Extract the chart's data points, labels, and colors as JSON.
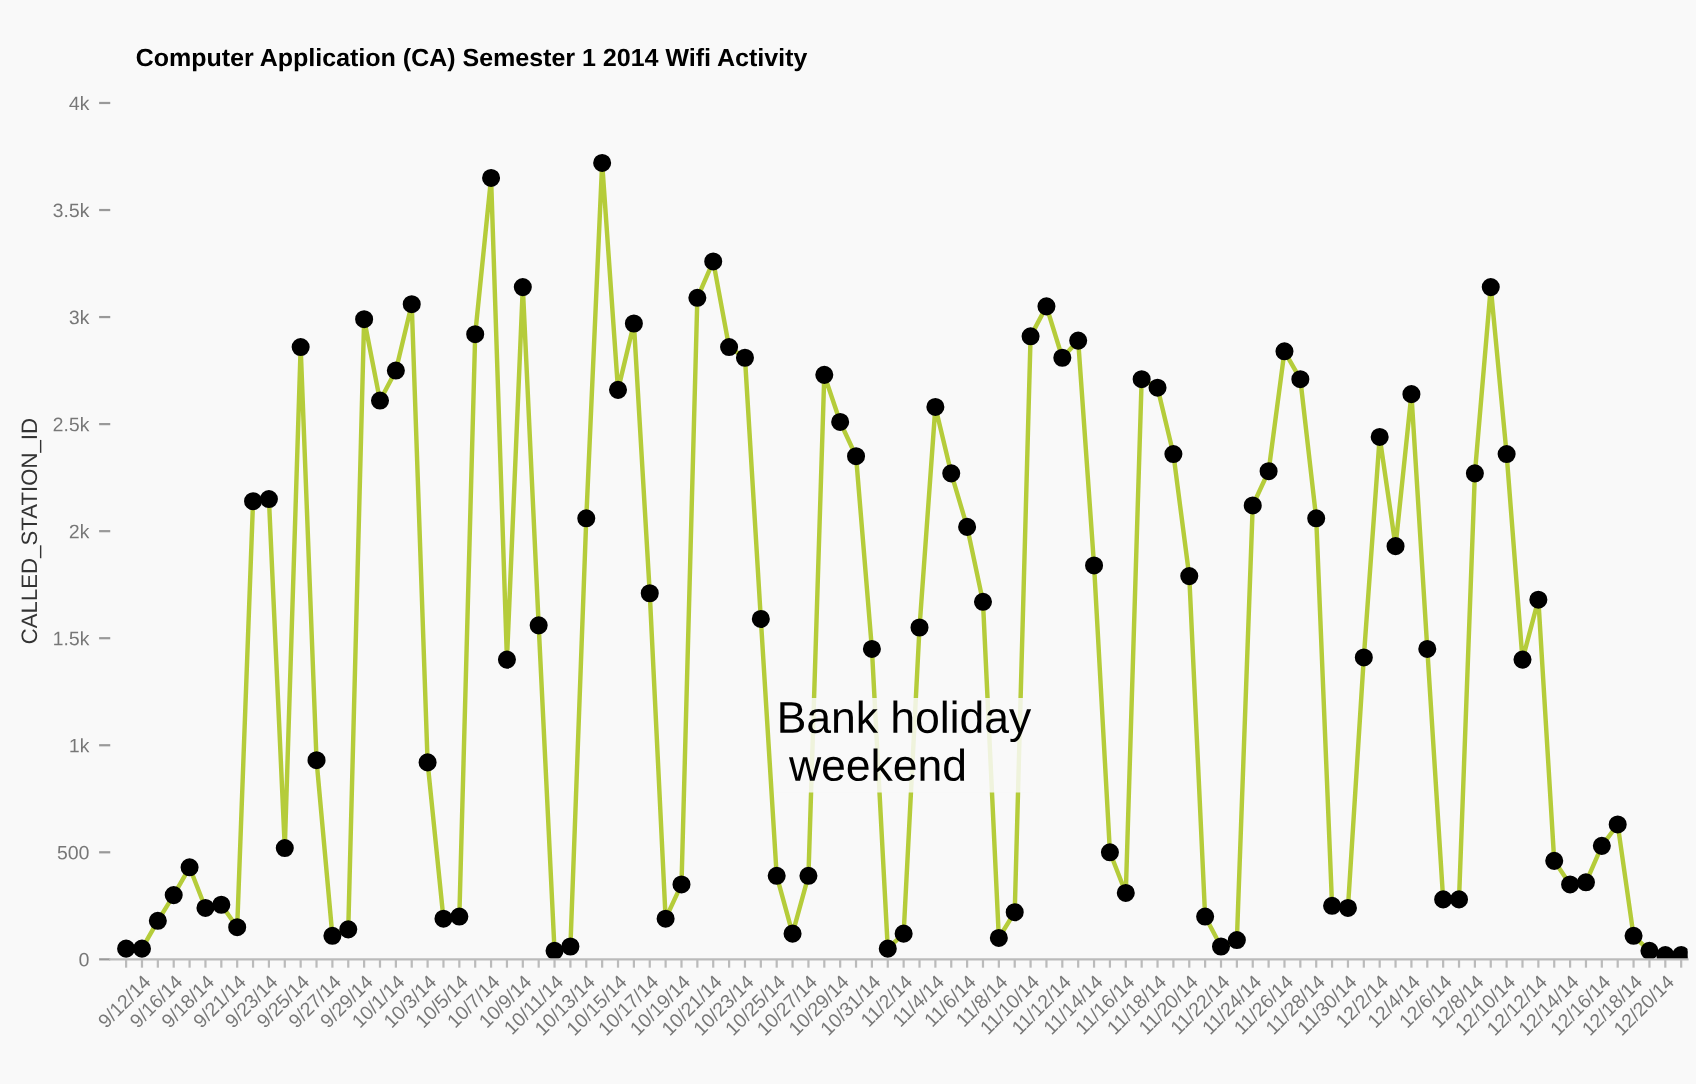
{
  "chart_data": {
    "type": "line",
    "title": "Computer Application (CA) Semester 1 2014 Wifi Activity",
    "ylabel": "CALLED_STATION_ID",
    "categories": [
      null,
      "9/12/14",
      null,
      "9/16/14",
      null,
      "9/18/14",
      null,
      "9/21/14",
      null,
      "9/23/14",
      null,
      "9/25/14",
      null,
      "9/27/14",
      null,
      "9/29/14",
      null,
      "10/1/14",
      null,
      "10/3/14",
      null,
      "10/5/14",
      null,
      "10/7/14",
      null,
      "10/9/14",
      null,
      "10/11/14",
      null,
      "10/13/14",
      null,
      "10/15/14",
      null,
      "10/17/14",
      null,
      "10/19/14",
      null,
      "10/21/14",
      null,
      "10/23/14",
      null,
      "10/25/14",
      null,
      "10/27/14",
      null,
      "10/29/14",
      null,
      "10/31/14",
      null,
      "11/2/14",
      null,
      "11/4/14",
      null,
      "11/6/14",
      null,
      "11/8/14",
      null,
      "11/10/14",
      null,
      "11/12/14",
      null,
      "11/14/14",
      null,
      "11/16/14",
      null,
      "11/18/14",
      null,
      "11/20/14",
      null,
      "11/22/14",
      null,
      "11/24/14",
      null,
      "11/26/14",
      null,
      "11/28/14",
      null,
      "11/30/14",
      null,
      "12/2/14",
      null,
      "12/4/14",
      null,
      "12/6/14",
      null,
      "12/8/14",
      null,
      "12/10/14",
      null,
      "12/12/14",
      null,
      "12/14/14",
      null,
      "12/16/14",
      null,
      "12/18/14",
      null,
      "12/20/14",
      null
    ],
    "series": [
      {
        "color": "#b5cc3a",
        "values": [
          50,
          50,
          180,
          300,
          430,
          240,
          255,
          150,
          2140,
          2150,
          520,
          2860,
          930,
          110,
          140,
          2990,
          2610,
          2750,
          3060,
          920,
          190,
          200,
          2920,
          3650,
          1400,
          3140,
          1560,
          40,
          60,
          2060,
          3720,
          2660,
          2970,
          1710,
          190,
          350,
          3090,
          3260,
          2860,
          2810,
          1590,
          390,
          120,
          390,
          2730,
          2510,
          2350,
          1450,
          50,
          120,
          1550,
          2580,
          2270,
          2020,
          1670,
          100,
          220,
          2910,
          3050,
          2810,
          2890,
          1840,
          500,
          310,
          2710,
          2670,
          2360,
          1790,
          200,
          60,
          90,
          2120,
          2280,
          2840,
          2710,
          2060,
          250,
          240,
          1410,
          2440,
          1930,
          2640,
          1450,
          280,
          280,
          2270,
          3140,
          2360,
          1400,
          1680,
          460,
          350,
          360,
          530,
          630,
          110,
          40,
          20,
          20
        ]
      }
    ],
    "ylim": [
      0,
      4000
    ],
    "yticks": [
      0,
      500,
      {
        "value": 1000,
        "label": "1k"
      },
      {
        "value": 1500,
        "label": "1.5k"
      },
      {
        "value": 2000,
        "label": "2k"
      },
      {
        "value": 2500,
        "label": "2.5k"
      },
      {
        "value": 3000,
        "label": "3k"
      },
      {
        "value": 3500,
        "label": "3.5k"
      },
      {
        "value": 4000,
        "label": "4k"
      }
    ],
    "annotations": [
      {
        "text": "Bank holiday\n weekend",
        "x": "10/25/14",
        "y": 1000
      }
    ],
    "marker": "circle",
    "line_style": "solid",
    "grid": false
  }
}
